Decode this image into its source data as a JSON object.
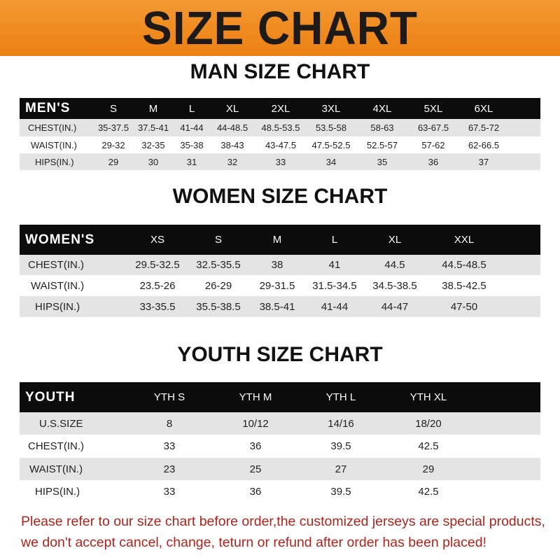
{
  "banner": {
    "title": "SIZE CHART"
  },
  "colors": {
    "banner": "#ef8a1f",
    "header_row": "#0c0c0c",
    "stripe": "#e4e4e4",
    "note": "#b0231c"
  },
  "men": {
    "title": "MAN SIZE CHART",
    "header_label": "MEN'S",
    "sizes": [
      "S",
      "M",
      "L",
      "XL",
      "2XL",
      "3XL",
      "4XL",
      "5XL",
      "6XL"
    ],
    "rows": [
      {
        "label": "CHEST(IN.)",
        "values": [
          "35-37.5",
          "37.5-41",
          "41-44",
          "44-48.5",
          "48.5-53.5",
          "53.5-58",
          "58-63",
          "63-67.5",
          "67.5-72"
        ]
      },
      {
        "label": "WAIST(IN.)",
        "values": [
          "29-32",
          "32-35",
          "35-38",
          "38-43",
          "43-47.5",
          "47.5-52.5",
          "52.5-57",
          "57-62",
          "62-66.5"
        ]
      },
      {
        "label": "HIPS(IN.)",
        "values": [
          "29",
          "30",
          "31",
          "32",
          "33",
          "34",
          "35",
          "36",
          "37"
        ]
      }
    ]
  },
  "women": {
    "title": "WOMEN SIZE CHART",
    "header_label": "WOMEN'S",
    "sizes": [
      "XS",
      "S",
      "M",
      "L",
      "XL",
      "XXL"
    ],
    "rows": [
      {
        "label": "CHEST(IN.)",
        "values": [
          "29.5-32.5",
          "32.5-35.5",
          "38",
          "41",
          "44.5",
          "44.5-48.5"
        ]
      },
      {
        "label": "WAIST(IN.)",
        "values": [
          "23.5-26",
          "26-29",
          "29-31.5",
          "31.5-34.5",
          "34.5-38.5",
          "38.5-42.5"
        ]
      },
      {
        "label": "HIPS(IN.)",
        "values": [
          "33-35.5",
          "35.5-38.5",
          "38.5-41",
          "41-44",
          "44-47",
          "47-50"
        ]
      }
    ]
  },
  "youth": {
    "title": "YOUTH SIZE CHART",
    "header_label": "YOUTH",
    "sizes": [
      "YTH S",
      "YTH M",
      "YTH L",
      "YTH XL"
    ],
    "rows": [
      {
        "label": "U.S.SIZE",
        "values": [
          "8",
          "10/12",
          "14/16",
          "18/20"
        ]
      },
      {
        "label": "CHEST(IN.)",
        "values": [
          "33",
          "36",
          "39.5",
          "42.5"
        ]
      },
      {
        "label": "WAIST(IN.)",
        "values": [
          "23",
          "25",
          "27",
          "29"
        ]
      },
      {
        "label": "HIPS(IN.)",
        "values": [
          "33",
          "36",
          "39.5",
          "42.5"
        ]
      }
    ]
  },
  "note": {
    "line1": "Please refer to our size chart before order,the customized jerseys are special products,",
    "line2": "we don't accept cancel, change, teturn or refund after order has been placed!"
  }
}
